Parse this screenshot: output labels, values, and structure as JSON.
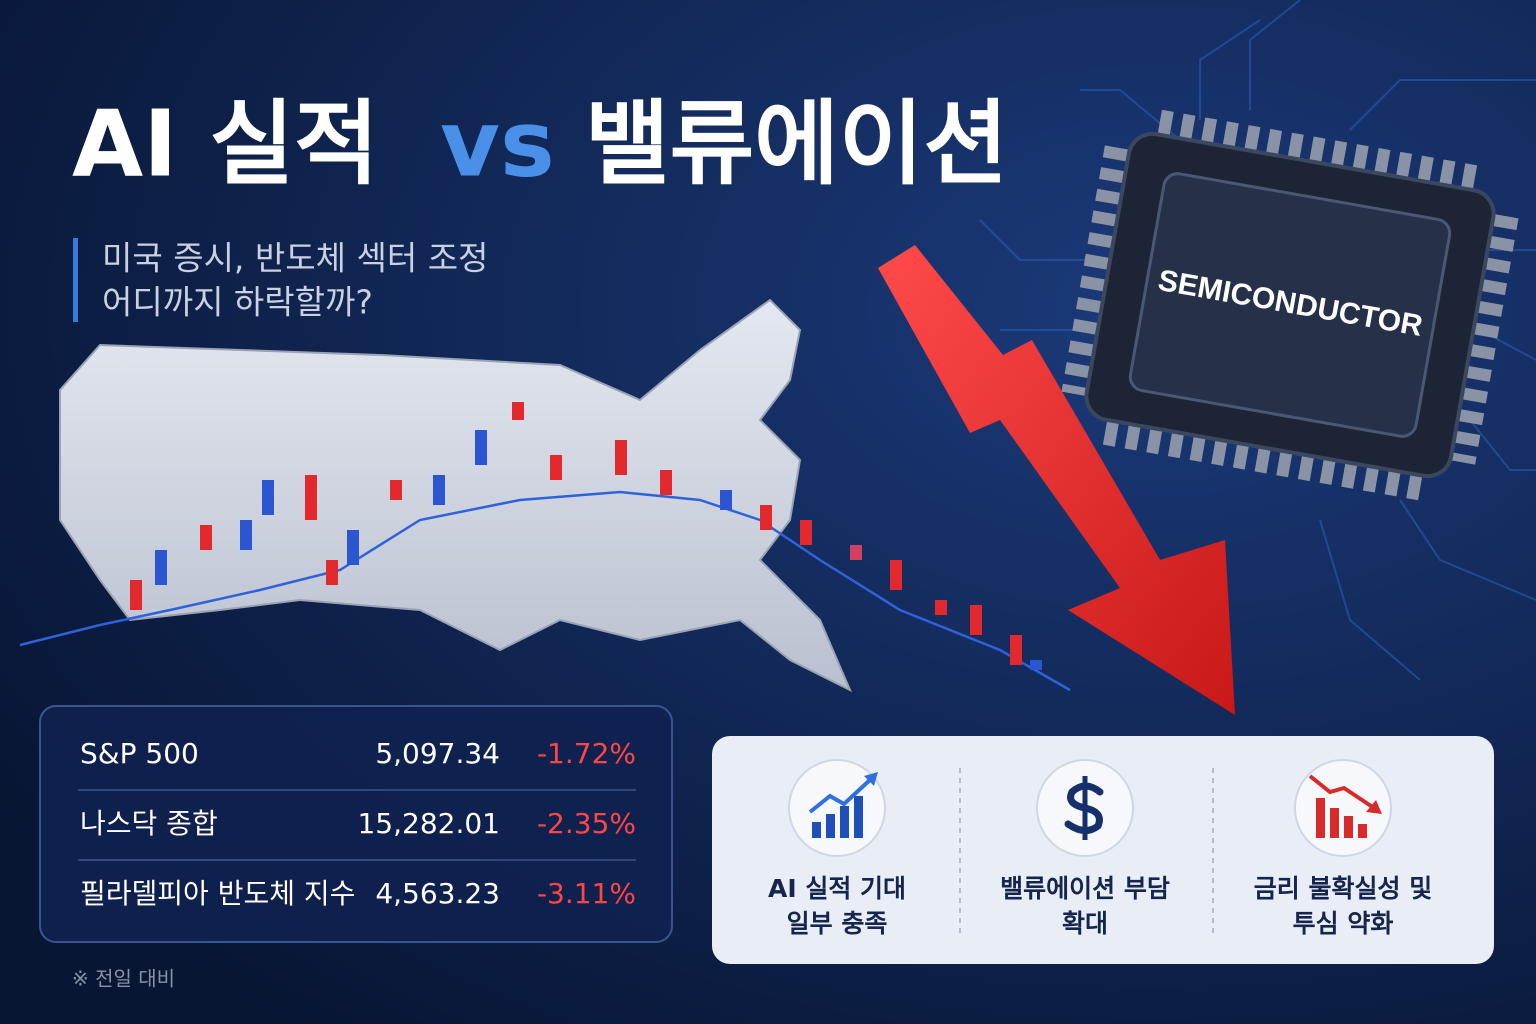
{
  "header": {
    "title": [
      "AI 실적",
      "vs",
      "밸류에이션"
    ],
    "subtitle": [
      "미국 증시, 반도체 섹터 조정",
      "어디까지 하락할까?"
    ]
  },
  "chip": {
    "label": "SEMICONDUCTOR"
  },
  "table": {
    "rows": [
      [
        "S&P 500",
        "5,097.34",
        "-1.72%"
      ],
      [
        "나스닥 종합",
        "15,282.01",
        "-2.35%"
      ],
      [
        "필라델피아 반도체 지수",
        "4,563.23",
        "-3.11%"
      ]
    ],
    "footnote": "※ 전일 대비"
  },
  "factors": [
    {
      "lines": [
        "AI 실적 기대",
        "일부 충족"
      ]
    },
    {
      "lines": [
        "밸류에이션 부담",
        "확대"
      ]
    },
    {
      "lines": [
        "금리 불확실성 및",
        "투심 약화"
      ]
    }
  ]
}
